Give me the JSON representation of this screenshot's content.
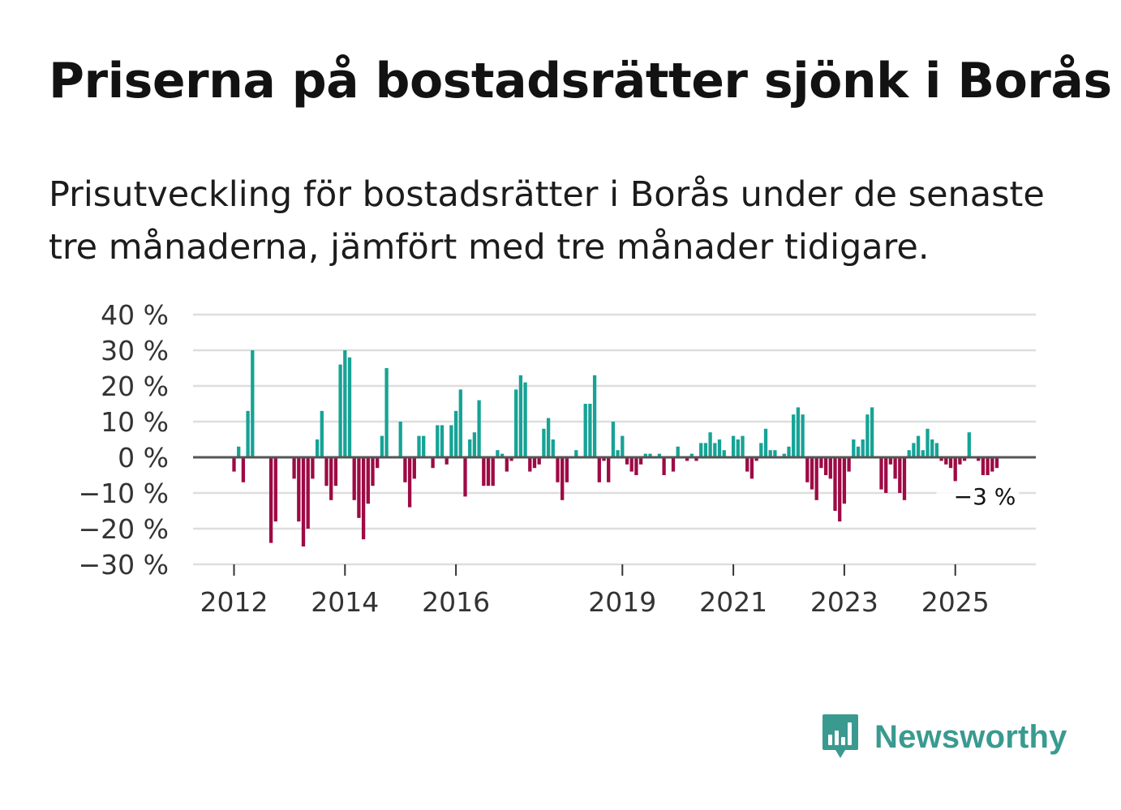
{
  "header": {
    "title": "Priserna på bostadsrätter sjönk i Borås",
    "subtitle": "Prisutveckling för bostadsrätter i Borås under de senaste tre månaderna, jämfört med tre månader tidigare."
  },
  "brand": {
    "name": "Newsworthy",
    "icon": "bar-chart-speech-bubble-icon",
    "color": "#3a9a90"
  },
  "colors": {
    "positive": "#16a396",
    "negative": "#9e0a45",
    "zero_line": "#555555",
    "grid": "#dedede"
  },
  "chart_data": {
    "type": "bar",
    "title": "Priserna på bostadsrätter sjönk i Borås",
    "ylabel": "",
    "xlabel": "",
    "ylim": [
      -30,
      40
    ],
    "y_ticks": [
      {
        "value": 40,
        "label": "40 %"
      },
      {
        "value": 30,
        "label": "30 %"
      },
      {
        "value": 20,
        "label": "20 %"
      },
      {
        "value": 10,
        "label": "10 %"
      },
      {
        "value": 0,
        "label": "0 %"
      },
      {
        "value": -10,
        "label": "−10 %"
      },
      {
        "value": -20,
        "label": "−20 %"
      },
      {
        "value": -30,
        "label": "−30 %"
      }
    ],
    "x_ticks": [
      {
        "index": 0,
        "label": "2012"
      },
      {
        "index": 24,
        "label": "2014"
      },
      {
        "index": 48,
        "label": "2016"
      },
      {
        "index": 84,
        "label": "2019"
      },
      {
        "index": 108,
        "label": "2021"
      },
      {
        "index": 132,
        "label": "2023"
      },
      {
        "index": 156,
        "label": "2025"
      }
    ],
    "start": "2012-01",
    "interval": "month",
    "grid": true,
    "annotation": {
      "label": "−3 %",
      "value": -3,
      "index": 167
    },
    "values": [
      -4,
      3,
      -7,
      13,
      30,
      0,
      0,
      0,
      -24,
      -18,
      0,
      0,
      0,
      -6,
      -18,
      -25,
      -20,
      -6,
      5,
      13,
      -8,
      -12,
      -8,
      26,
      30,
      28,
      -12,
      -17,
      -23,
      -13,
      -8,
      -3,
      6,
      25,
      0,
      0,
      10,
      -7,
      -14,
      -6,
      6,
      6,
      0,
      -3,
      9,
      9,
      -2,
      9,
      13,
      19,
      -11,
      5,
      7,
      16,
      -8,
      -8,
      -8,
      2,
      1,
      -4,
      -1,
      19,
      23,
      21,
      -4,
      -3,
      -2,
      8,
      11,
      5,
      -7,
      -12,
      -7,
      0,
      2,
      0,
      15,
      15,
      23,
      -7,
      -1,
      -7,
      10,
      2,
      6,
      -2,
      -4,
      -5,
      -2,
      1,
      1,
      0,
      1,
      -5,
      0,
      -4,
      3,
      0,
      -1,
      1,
      -1,
      4,
      4,
      7,
      4,
      5,
      2,
      0,
      6,
      5,
      6,
      -4,
      -6,
      -1,
      4,
      8,
      2,
      2,
      0,
      1,
      3,
      12,
      14,
      12,
      -7,
      -9,
      -12,
      -3,
      -5,
      -6,
      -15,
      -18,
      -13,
      -4,
      5,
      3,
      5,
      12,
      14,
      0,
      -9,
      -10,
      -2,
      -6,
      -10,
      -12,
      2,
      4,
      6,
      2,
      8,
      5,
      4,
      -1,
      -2,
      -3,
      -7,
      -2,
      -1,
      7,
      0,
      -1,
      -5,
      -5,
      -4,
      -3
    ]
  }
}
